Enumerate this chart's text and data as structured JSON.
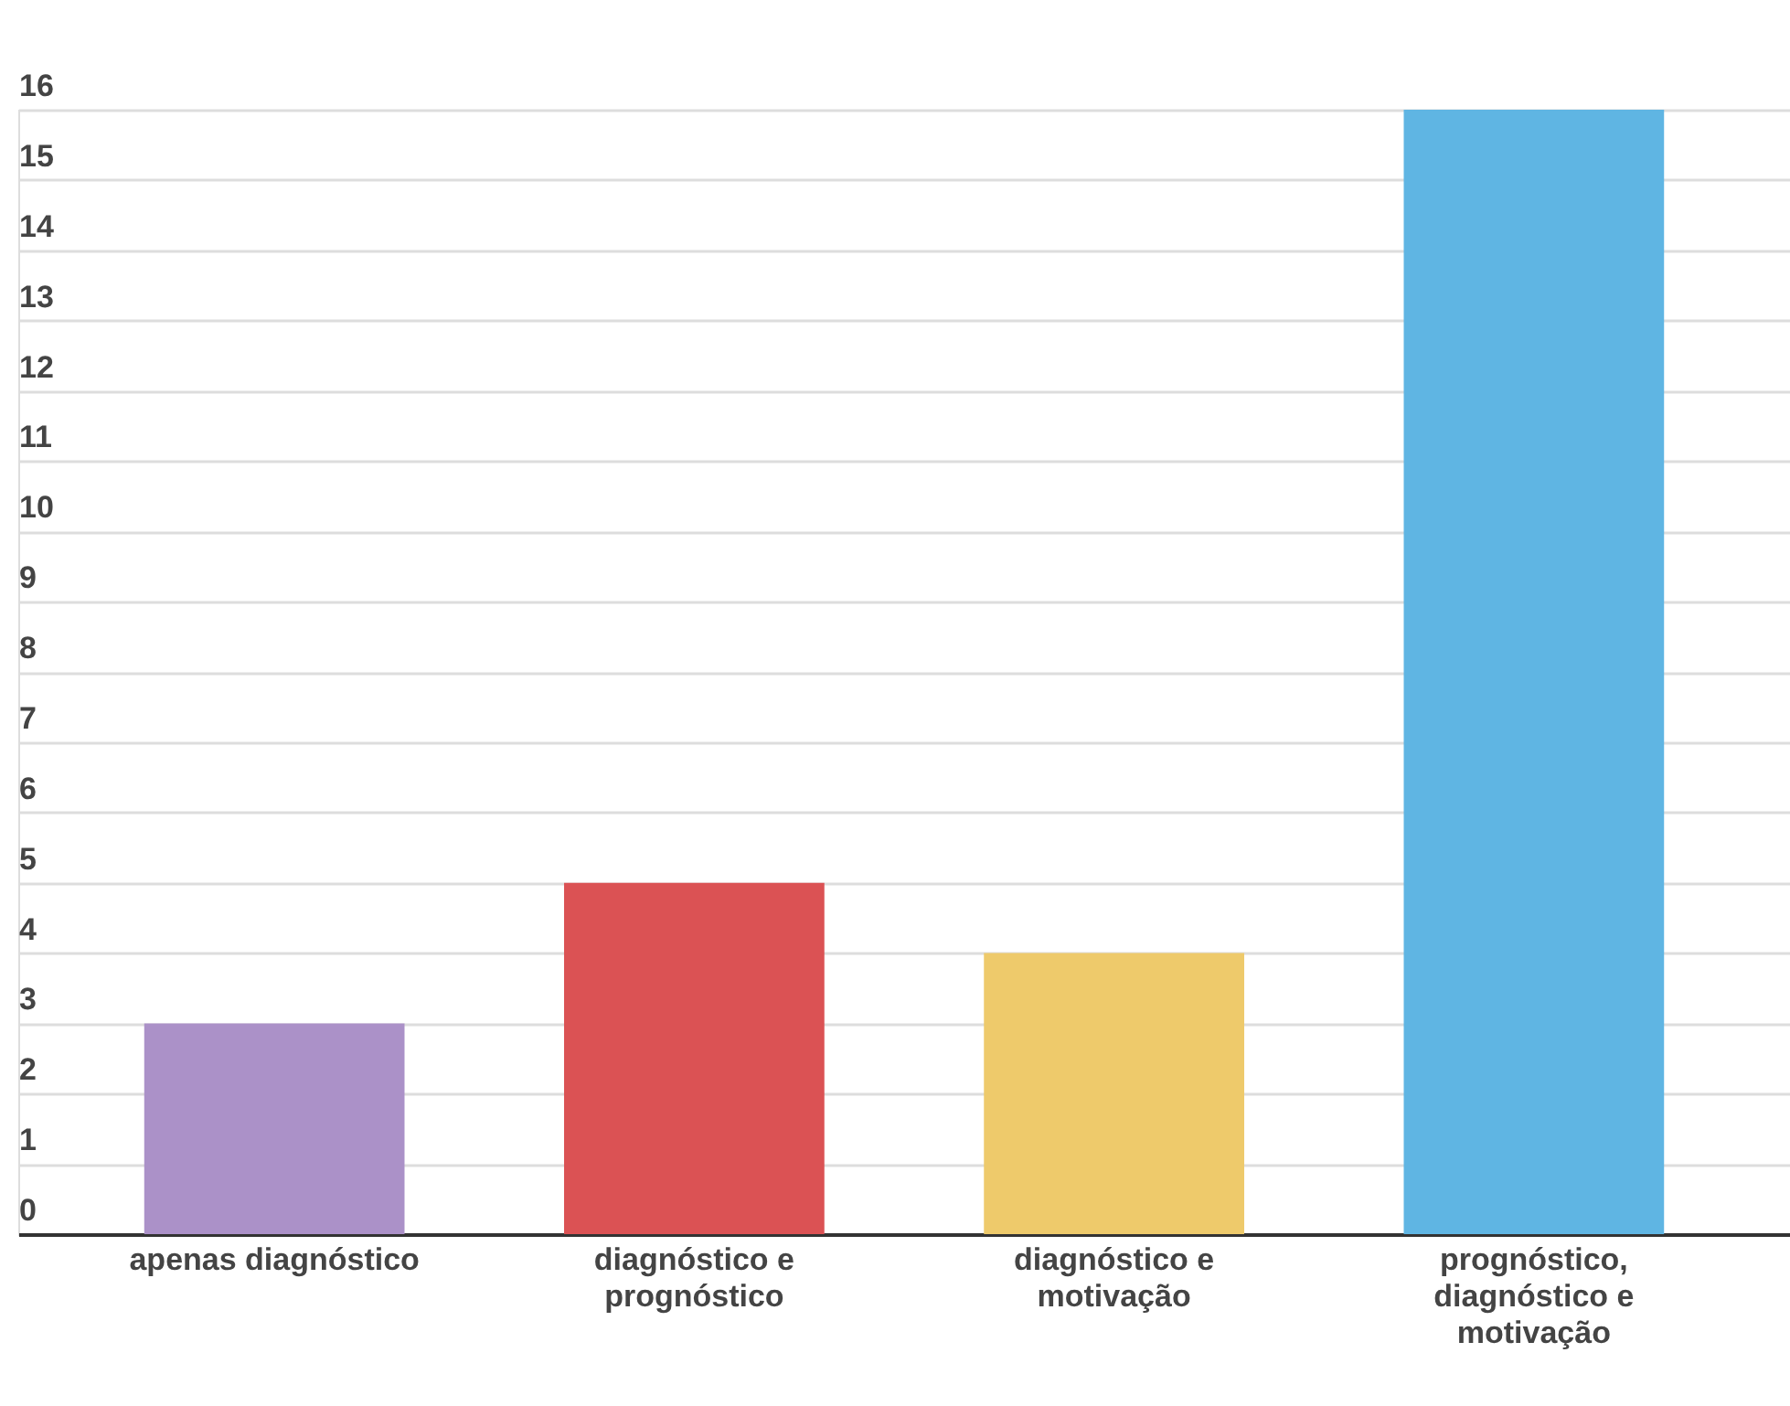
{
  "chart_data": {
    "type": "bar",
    "categories": [
      "apenas diagnóstico",
      "diagnóstico e prognóstico",
      "diagnóstico e motivação",
      "prognóstico, diagnóstico e motivação"
    ],
    "values": [
      3,
      5,
      4,
      16
    ],
    "colors": [
      "#ab91c8",
      "#db5254",
      "#eeca6b",
      "#5fb5e3"
    ],
    "ylim": [
      0,
      16
    ],
    "yticks": [
      0,
      1,
      2,
      3,
      4,
      5,
      6,
      7,
      8,
      9,
      10,
      11,
      12,
      13,
      14,
      15,
      16
    ],
    "grid": "y",
    "legend": false
  }
}
